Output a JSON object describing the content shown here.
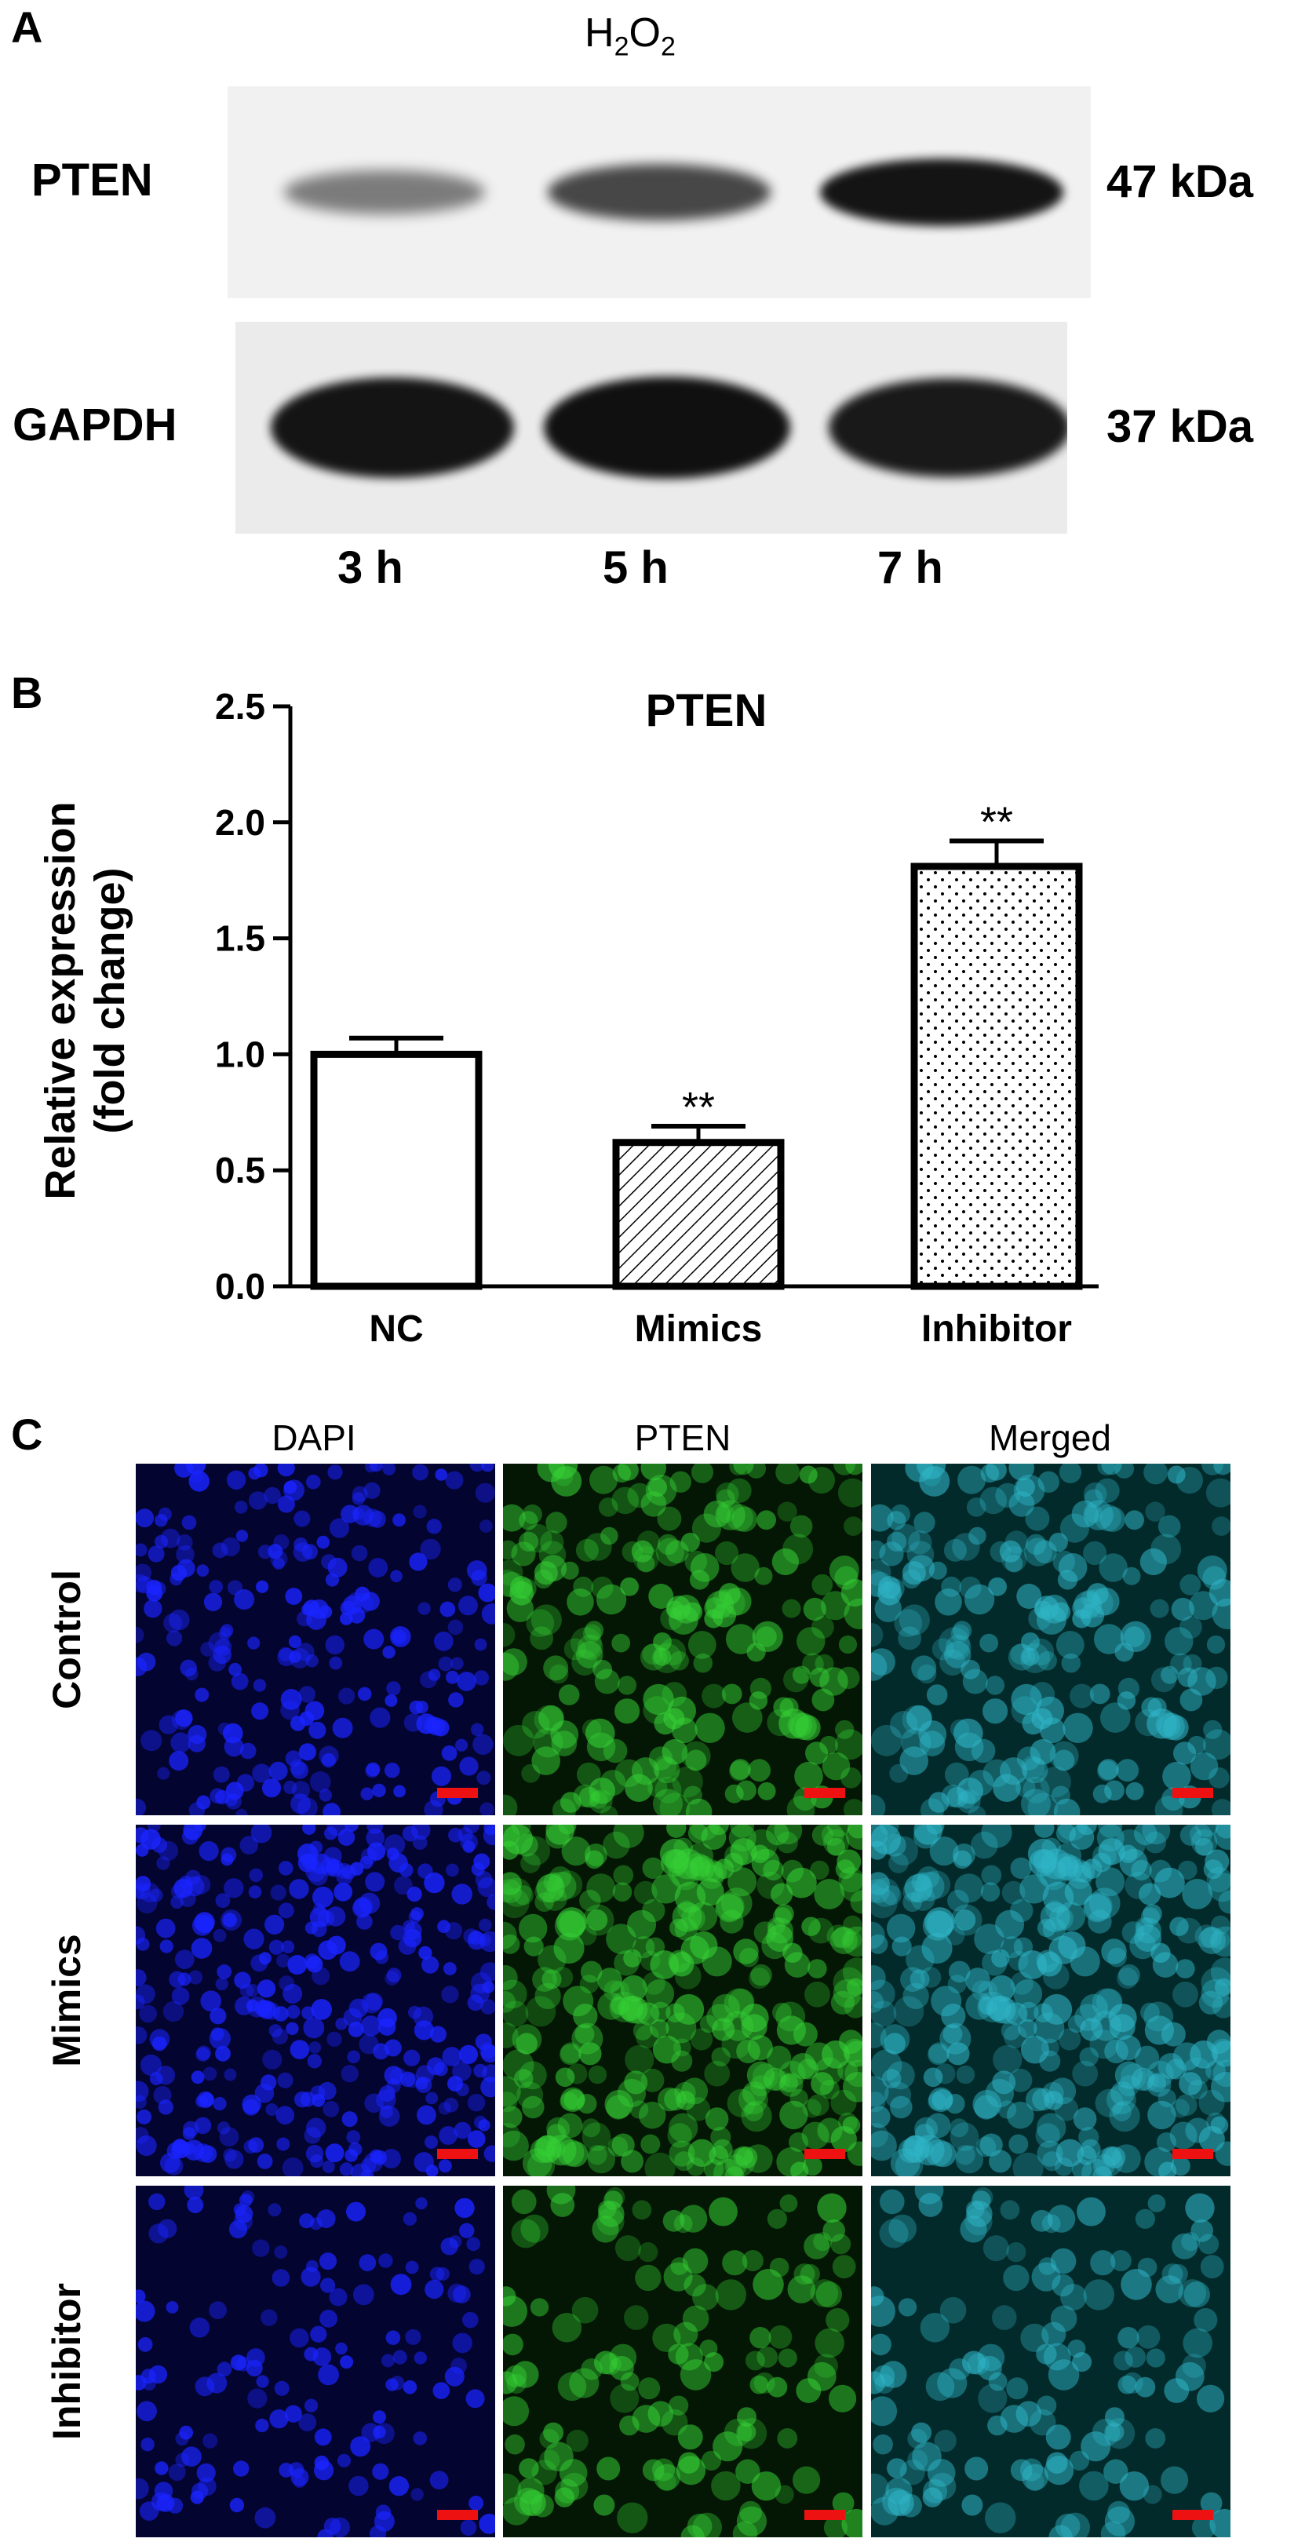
{
  "panels": {
    "a_letter": "A",
    "b_letter": "B",
    "c_letter": "C"
  },
  "blot": {
    "treatment_prefix": "H",
    "treatment_sub1": "2",
    "treatment_mid": "O",
    "treatment_sub2": "2",
    "rows": [
      {
        "label": "PTEN",
        "size": "47 kDa"
      },
      {
        "label": "GAPDH",
        "size": "37 kDa"
      }
    ],
    "lanes": [
      "3 h",
      "5 h",
      "7 h"
    ],
    "band_intensity": {
      "PTEN": [
        0.35,
        0.65,
        0.95
      ],
      "GAPDH": [
        0.95,
        0.98,
        0.92
      ]
    },
    "band_color": "#0c0c0c"
  },
  "chart_data": {
    "type": "bar",
    "title": "PTEN",
    "ylabel_line1": "Relative expression",
    "ylabel_line2": "(fold change)",
    "xlabel": "",
    "categories": [
      "NC",
      "Mimics",
      "Inhibitor"
    ],
    "values": [
      1.0,
      0.62,
      1.81
    ],
    "errors": [
      0.07,
      0.07,
      0.11
    ],
    "significance": [
      "",
      "**",
      "**"
    ],
    "fill_patterns": [
      "none",
      "hatch",
      "dots"
    ],
    "ylim": [
      0.0,
      2.5
    ],
    "yticks": [
      "0.0",
      "0.5",
      "1.0",
      "1.5",
      "2.0",
      "2.5"
    ],
    "grid": false
  },
  "fluorescence": {
    "columns": [
      "DAPI",
      "PTEN",
      "Merged"
    ],
    "rows": [
      "Control",
      "Mimics",
      "Inhibitor"
    ],
    "channel_colors": {
      "DAPI": "#1a24ff",
      "PTEN": "#35d035",
      "Merged": "#2fb6c8"
    },
    "scale_bar_color": "#ee1111"
  }
}
